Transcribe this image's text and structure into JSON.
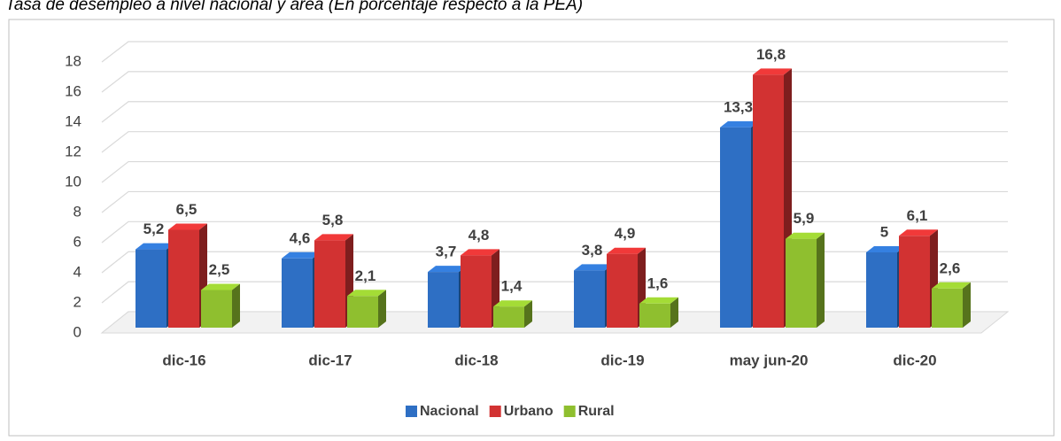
{
  "chart_data": {
    "type": "bar3d",
    "title": "Tasa de desempleo a nivel nacional y área (En porcentaje respecto a la PEA)",
    "categories": [
      "dic-16",
      "dic-17",
      "dic-18",
      "dic-19",
      "may jun-20",
      "dic-20"
    ],
    "series": [
      {
        "name": "Nacional",
        "color": "#2e6fc4",
        "values": [
          5.2,
          4.6,
          3.7,
          3.8,
          13.3,
          5
        ],
        "value_labels": [
          "5,2",
          "4,6",
          "3,7",
          "3,8",
          "13,3",
          "5"
        ]
      },
      {
        "name": "Urbano",
        "color": "#d23232",
        "values": [
          6.5,
          5.8,
          4.8,
          4.9,
          16.8,
          6.1
        ],
        "value_labels": [
          "6,5",
          "5,8",
          "4,8",
          "4,9",
          "16,8",
          "6,1"
        ]
      },
      {
        "name": "Rural",
        "color": "#8fbf2f",
        "values": [
          2.5,
          2.1,
          1.4,
          1.6,
          5.9,
          2.6
        ],
        "value_labels": [
          "2,5",
          "2,1",
          "1,4",
          "1,6",
          "5,9",
          "2,6"
        ]
      }
    ],
    "ylim": [
      0,
      18
    ],
    "yticks": [
      0,
      2,
      4,
      6,
      8,
      10,
      12,
      14,
      16,
      18
    ],
    "grid": true,
    "legend": "bottom"
  }
}
